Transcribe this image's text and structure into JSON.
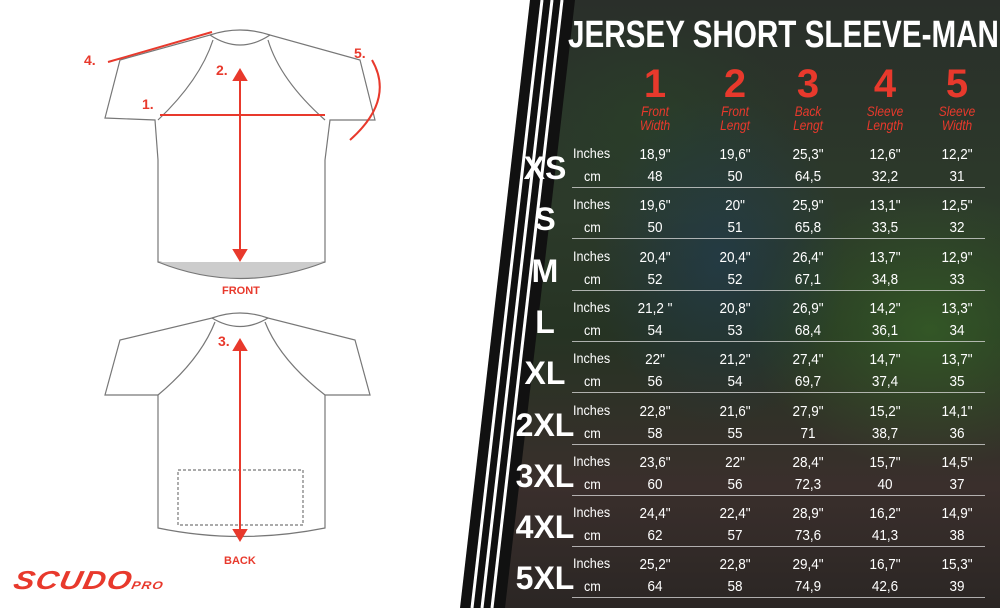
{
  "title": "JERSEY SHORT SLEEVE-MAN",
  "accent_color": "#e8392c",
  "brand": {
    "name": "SCUDO",
    "suffix": "PRO"
  },
  "diagram": {
    "front_label": "FRONT",
    "back_label": "BACK",
    "markers": [
      "1.",
      "2.",
      "3.",
      "4.",
      "5."
    ]
  },
  "columns": [
    {
      "number": "1",
      "label_top": "Front",
      "label_bottom": "Width"
    },
    {
      "number": "2",
      "label_top": "Front",
      "label_bottom": "Lengt"
    },
    {
      "number": "3",
      "label_top": "Back",
      "label_bottom": "Lengt"
    },
    {
      "number": "4",
      "label_top": "Sleeve",
      "label_bottom": "Length"
    },
    {
      "number": "5",
      "label_top": "Sleeve",
      "label_bottom": "Width"
    }
  ],
  "units": {
    "inches": "Inches",
    "cm": "cm"
  },
  "rows": [
    {
      "size": "XS",
      "inches": [
        "18,9\"",
        "19,6\"",
        "25,3\"",
        "12,6\"",
        "12,2\""
      ],
      "cm": [
        "48",
        "50",
        "64,5",
        "32,2",
        "31"
      ]
    },
    {
      "size": "S",
      "inches": [
        "19,6\"",
        "20\"",
        "25,9\"",
        "13,1\"",
        "12,5\""
      ],
      "cm": [
        "50",
        "51",
        "65,8",
        "33,5",
        "32"
      ]
    },
    {
      "size": "M",
      "inches": [
        "20,4\"",
        "20,4\"",
        "26,4\"",
        "13,7\"",
        "12,9\""
      ],
      "cm": [
        "52",
        "52",
        "67,1",
        "34,8",
        "33"
      ]
    },
    {
      "size": "L",
      "inches": [
        "21,2 \"",
        "20,8\"",
        "26,9\"",
        "14,2\"",
        "13,3\""
      ],
      "cm": [
        "54",
        "53",
        "68,4",
        "36,1",
        "34"
      ]
    },
    {
      "size": "XL",
      "inches": [
        "22\"",
        "21,2\"",
        "27,4\"",
        "14,7\"",
        "13,7\""
      ],
      "cm": [
        "56",
        "54",
        "69,7",
        "37,4",
        "35"
      ]
    },
    {
      "size": "2XL",
      "inches": [
        "22,8\"",
        "21,6\"",
        "27,9\"",
        "15,2\"",
        "14,1\""
      ],
      "cm": [
        "58",
        "55",
        "71",
        "38,7",
        "36"
      ]
    },
    {
      "size": "3XL",
      "inches": [
        "23,6\"",
        "22\"",
        "28,4\"",
        "15,7\"",
        "14,5\""
      ],
      "cm": [
        "60",
        "56",
        "72,3",
        "40",
        "37"
      ]
    },
    {
      "size": "4XL",
      "inches": [
        "24,4\"",
        "22,4\"",
        "28,9\"",
        "16,2\"",
        "14,9\""
      ],
      "cm": [
        "62",
        "57",
        "73,6",
        "41,3",
        "38"
      ]
    },
    {
      "size": "5XL",
      "inches": [
        "25,2\"",
        "22,8\"",
        "29,4\"",
        "16,7\"",
        "15,3\""
      ],
      "cm": [
        "64",
        "58",
        "74,9",
        "42,6",
        "39"
      ]
    }
  ]
}
